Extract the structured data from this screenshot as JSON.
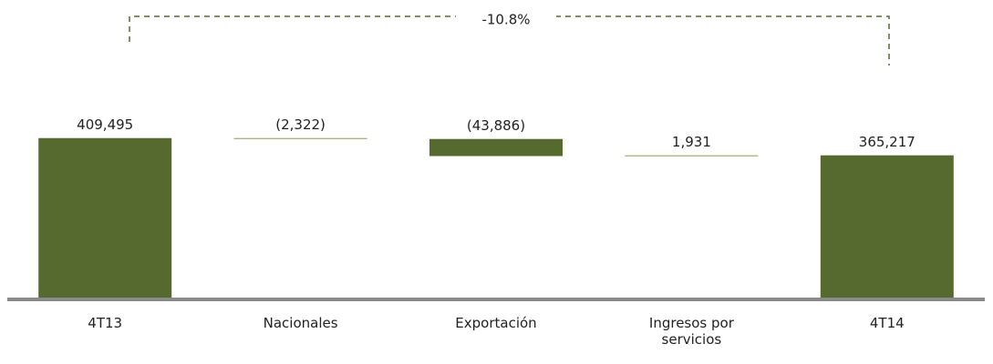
{
  "chart_data": {
    "type": "waterfall",
    "categories": [
      "4T13",
      "Nacionales",
      "Exportación",
      "Ingresos por servicios",
      "4T14"
    ],
    "values": [
      409495,
      -2322,
      -43886,
      1931,
      365217
    ],
    "value_labels": [
      "409,495",
      "(2,322)",
      "(43,886)",
      "1,931",
      "365,217"
    ],
    "totals": [
      true,
      false,
      false,
      false,
      true
    ],
    "color": "#566a30",
    "ylim": [
      0,
      500000
    ],
    "annotation": "-10.8%"
  }
}
